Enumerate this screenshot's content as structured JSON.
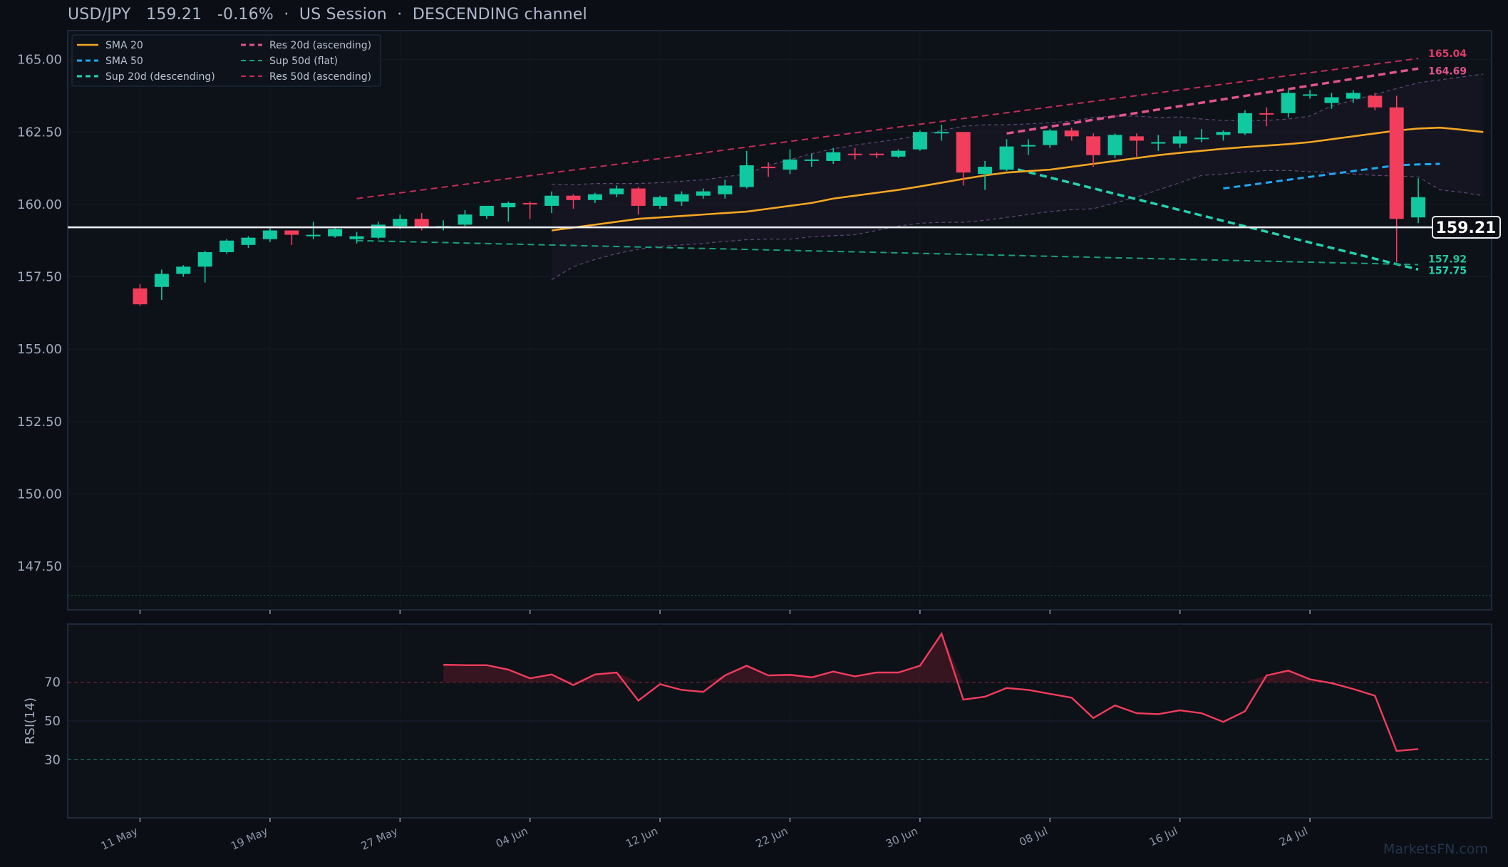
{
  "header": {
    "symbol": "USD/JPY",
    "price": "159.21",
    "change": "-0.16%",
    "session": "US Session",
    "channel": "DESCENDING channel"
  },
  "watermark": "MarketsFN.com",
  "colors": {
    "background": "#0b0e14",
    "up": "#10c9a0",
    "down": "#f23d5c",
    "sma20": "#f5a623",
    "sma50": "#1ea7f2",
    "res": "#e0457b",
    "sup": "#19c29a",
    "rsi": "#f23d5c"
  },
  "chart_data": [
    {
      "type": "candlestick",
      "name": "price",
      "ylim": [
        146.0,
        166.0
      ],
      "yticks": [
        147.5,
        150.0,
        152.5,
        155.0,
        157.5,
        160.0,
        162.5,
        165.0
      ],
      "ytick_labels": [
        "147.50",
        "150.00",
        "152.50",
        "155.00",
        "157.50",
        "160.00",
        "162.50",
        "165.00"
      ],
      "x_labels": [
        "11 May",
        "19 May",
        "27 May",
        "04 Jun",
        "12 Jun",
        "22 Jun",
        "30 Jun",
        "08 Jul",
        "16 Jul",
        "24 Jul"
      ],
      "x_label_index": [
        0,
        6,
        12,
        18,
        24,
        30,
        36,
        42,
        48,
        54
      ],
      "candles": [
        [
          157.1,
          157.25,
          156.5,
          156.55
        ],
        [
          157.15,
          157.75,
          156.7,
          157.6
        ],
        [
          157.6,
          157.9,
          157.5,
          157.85
        ],
        [
          157.85,
          158.4,
          157.3,
          158.35
        ],
        [
          158.35,
          158.8,
          158.3,
          158.75
        ],
        [
          158.6,
          158.9,
          158.5,
          158.85
        ],
        [
          158.8,
          159.2,
          158.7,
          159.1
        ],
        [
          159.1,
          159.1,
          158.6,
          158.95
        ],
        [
          158.9,
          159.4,
          158.8,
          158.95
        ],
        [
          158.9,
          159.2,
          158.85,
          159.15
        ],
        [
          158.8,
          159.05,
          158.65,
          158.9
        ],
        [
          158.85,
          159.4,
          158.8,
          159.3
        ],
        [
          159.25,
          159.65,
          159.15,
          159.5
        ],
        [
          159.5,
          159.7,
          159.1,
          159.2
        ],
        [
          159.2,
          159.45,
          159.1,
          159.25
        ],
        [
          159.3,
          159.8,
          159.25,
          159.65
        ],
        [
          159.6,
          159.95,
          159.5,
          159.95
        ],
        [
          159.9,
          160.1,
          159.4,
          160.05
        ],
        [
          160.05,
          160.1,
          159.5,
          160.0
        ],
        [
          159.95,
          160.45,
          159.7,
          160.3
        ],
        [
          160.3,
          160.35,
          159.85,
          160.15
        ],
        [
          160.15,
          160.4,
          160.05,
          160.35
        ],
        [
          160.35,
          160.65,
          160.25,
          160.55
        ],
        [
          160.55,
          160.6,
          159.65,
          159.95
        ],
        [
          159.95,
          160.3,
          159.85,
          160.25
        ],
        [
          160.1,
          160.45,
          159.95,
          160.35
        ],
        [
          160.3,
          160.55,
          160.2,
          160.45
        ],
        [
          160.35,
          160.85,
          160.2,
          160.65
        ],
        [
          160.6,
          161.85,
          160.55,
          161.35
        ],
        [
          161.3,
          161.45,
          160.95,
          161.25
        ],
        [
          161.2,
          161.9,
          161.05,
          161.55
        ],
        [
          161.55,
          161.75,
          161.3,
          161.55
        ],
        [
          161.5,
          161.95,
          161.4,
          161.8
        ],
        [
          161.75,
          161.95,
          161.55,
          161.7
        ],
        [
          161.75,
          161.8,
          161.6,
          161.7
        ],
        [
          161.65,
          161.9,
          161.6,
          161.85
        ],
        [
          161.9,
          162.55,
          161.85,
          162.5
        ],
        [
          162.5,
          162.75,
          162.2,
          162.5
        ],
        [
          162.5,
          162.5,
          160.65,
          161.1
        ],
        [
          161.05,
          161.5,
          160.5,
          161.3
        ],
        [
          161.2,
          162.25,
          161.15,
          162.0
        ],
        [
          162.0,
          162.25,
          161.7,
          162.05
        ],
        [
          162.05,
          162.6,
          161.95,
          162.55
        ],
        [
          162.55,
          162.65,
          162.2,
          162.35
        ],
        [
          162.35,
          162.45,
          161.3,
          161.7
        ],
        [
          161.7,
          162.45,
          161.6,
          162.4
        ],
        [
          162.35,
          162.45,
          161.65,
          162.2
        ],
        [
          162.1,
          162.4,
          161.85,
          162.15
        ],
        [
          162.1,
          162.55,
          161.95,
          162.35
        ],
        [
          162.3,
          162.6,
          162.15,
          162.3
        ],
        [
          162.4,
          162.55,
          162.2,
          162.5
        ],
        [
          162.45,
          163.25,
          162.4,
          163.15
        ],
        [
          163.15,
          163.35,
          162.7,
          163.1
        ],
        [
          163.15,
          163.95,
          163.0,
          163.85
        ],
        [
          163.75,
          163.95,
          163.65,
          163.8
        ],
        [
          163.5,
          163.85,
          163.3,
          163.7
        ],
        [
          163.65,
          163.95,
          163.5,
          163.85
        ],
        [
          163.75,
          163.85,
          163.25,
          163.35
        ],
        [
          163.35,
          163.75,
          158.0,
          159.5
        ],
        [
          159.55,
          160.9,
          159.35,
          160.25
        ]
      ],
      "sma20": {
        "start": 19,
        "values": [
          159.1,
          159.2,
          159.3,
          159.4,
          159.5,
          159.55,
          159.6,
          159.65,
          159.7,
          159.75,
          159.85,
          159.95,
          160.05,
          160.2,
          160.3,
          160.4,
          160.5,
          160.62,
          160.75,
          160.88,
          161.0,
          161.1,
          161.15,
          161.2,
          161.3,
          161.4,
          161.5,
          161.6,
          161.7,
          161.78,
          161.85,
          161.92,
          161.98,
          162.03,
          162.08,
          162.15,
          162.25,
          162.35,
          162.45,
          162.55,
          162.62,
          162.65,
          162.58,
          162.5
        ]
      },
      "sma50": {
        "start": 50,
        "values": [
          160.55,
          160.65,
          160.75,
          160.85,
          160.95,
          161.05,
          161.15,
          161.25,
          161.35,
          161.38,
          161.4
        ]
      },
      "bollinger": {
        "start": 19,
        "upper": [
          160.7,
          160.68,
          160.72,
          160.72,
          160.72,
          160.75,
          160.8,
          160.85,
          160.95,
          161.05,
          161.35,
          161.55,
          161.75,
          161.92,
          162.05,
          162.15,
          162.25,
          162.4,
          162.55,
          162.7,
          162.75,
          162.75,
          162.78,
          162.82,
          162.88,
          163.0,
          163.05,
          163.05,
          163.0,
          163.02,
          162.95,
          162.9,
          162.88,
          162.9,
          162.95,
          163.05,
          163.4,
          163.6,
          163.8,
          164.0,
          164.2,
          164.3,
          164.4,
          164.5
        ],
        "lower": [
          157.4,
          157.85,
          158.1,
          158.3,
          158.45,
          158.55,
          158.6,
          158.65,
          158.72,
          158.78,
          158.8,
          158.8,
          158.88,
          158.92,
          158.95,
          159.1,
          159.25,
          159.35,
          159.38,
          159.38,
          159.45,
          159.55,
          159.65,
          159.75,
          159.82,
          159.85,
          160.05,
          160.25,
          160.5,
          160.75,
          161.0,
          161.05,
          161.12,
          161.17,
          161.17,
          161.13,
          161.1,
          161.05,
          161.0,
          160.98,
          160.95,
          160.5,
          160.42,
          160.3
        ]
      },
      "levels": [
        {
          "name": "Res 20d (ascending)",
          "from": [
            40,
            162.45
          ],
          "to": [
            59,
            164.69
          ],
          "label": "164.69",
          "style": "res-bold"
        },
        {
          "name": "Res 50d (ascending)",
          "from": [
            10,
            160.2
          ],
          "to": [
            59,
            165.04
          ],
          "label": "165.04",
          "style": "res-thin"
        },
        {
          "name": "Sup 20d (descending)",
          "from": [
            40,
            161.3
          ],
          "to": [
            59,
            157.75
          ],
          "label": "157.75",
          "style": "sup-bold"
        },
        {
          "name": "Sup 50d (flat)",
          "from": [
            10,
            158.75
          ],
          "to": [
            59,
            157.92
          ],
          "label": "157.92",
          "style": "sup-thin"
        }
      ],
      "current_price": 159.21,
      "current_label": "159.21",
      "bottom_guide": 146.5
    },
    {
      "type": "line",
      "name": "RSI(14)",
      "ylabel": "RSI(14)",
      "ylim": [
        0,
        100
      ],
      "yticks": [
        30,
        50,
        70
      ],
      "ytick_labels": [
        "30",
        "50",
        "70"
      ],
      "overbought": 70,
      "oversold": 30,
      "start": 14,
      "values": [
        79,
        78.8,
        78.8,
        76.5,
        72,
        74,
        68.5,
        74,
        75,
        60.5,
        69,
        66,
        65,
        73.5,
        78.5,
        73.5,
        73.8,
        72.5,
        75.5,
        73,
        75,
        75,
        78.5,
        95,
        61,
        62.5,
        67,
        66,
        64,
        62,
        51.5,
        58,
        54,
        53.5,
        55.5,
        54,
        49.5,
        55,
        73.5,
        76,
        71.5,
        69.5,
        66.5,
        63,
        34.5,
        35.5
      ]
    }
  ]
}
